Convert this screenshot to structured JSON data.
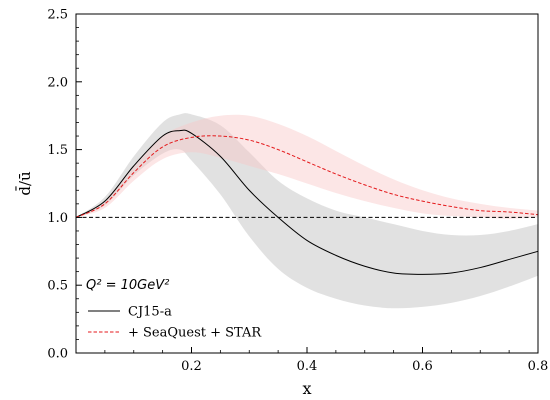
{
  "chart_data": {
    "type": "line",
    "xlabel": "x",
    "ylabel": "d̄/ū",
    "xlim": [
      0.0,
      0.8
    ],
    "ylim": [
      0.0,
      2.5
    ],
    "x_ticks": [
      0.2,
      0.4,
      0.6,
      0.8
    ],
    "x_tick_labels": [
      "0.2",
      "0.4",
      "0.6",
      "0.8"
    ],
    "y_ticks": [
      0.0,
      0.5,
      1.0,
      1.5,
      2.0,
      2.5
    ],
    "y_tick_labels": [
      "0.0",
      "0.5",
      "1.0",
      "1.5",
      "2.0",
      "2.5"
    ],
    "annotation": "Q² = 10GeV²",
    "legend_position": "bottom-left",
    "reference_line": {
      "y": 1.0,
      "style": "dashed",
      "color": "#000000"
    },
    "series": [
      {
        "name": "CJ15-a",
        "color": "#000000",
        "style": "solid",
        "band_color": "#bdbdbd",
        "x": [
          0.0,
          0.05,
          0.1,
          0.15,
          0.18,
          0.2,
          0.25,
          0.3,
          0.35,
          0.4,
          0.45,
          0.5,
          0.55,
          0.6,
          0.65,
          0.7,
          0.75,
          0.8
        ],
        "y": [
          1.0,
          1.12,
          1.38,
          1.6,
          1.64,
          1.62,
          1.45,
          1.2,
          1.0,
          0.83,
          0.72,
          0.64,
          0.59,
          0.58,
          0.59,
          0.63,
          0.69,
          0.75
        ],
        "lower": [
          1.0,
          1.09,
          1.31,
          1.47,
          1.5,
          1.42,
          1.17,
          0.86,
          0.62,
          0.48,
          0.4,
          0.35,
          0.33,
          0.34,
          0.37,
          0.42,
          0.49,
          0.57
        ],
        "upper": [
          1.0,
          1.15,
          1.45,
          1.7,
          1.76,
          1.76,
          1.68,
          1.48,
          1.27,
          1.14,
          1.05,
          1.0,
          0.95,
          0.9,
          0.87,
          0.87,
          0.9,
          0.95
        ]
      },
      {
        "name": "+ SeaQuest + STAR",
        "color": "#e41a1c",
        "style": "dashed",
        "band_color": "#f8c8c8",
        "x": [
          0.0,
          0.05,
          0.1,
          0.15,
          0.2,
          0.25,
          0.3,
          0.35,
          0.4,
          0.45,
          0.5,
          0.55,
          0.6,
          0.65,
          0.7,
          0.75,
          0.8
        ],
        "y": [
          1.0,
          1.1,
          1.33,
          1.52,
          1.59,
          1.6,
          1.57,
          1.5,
          1.41,
          1.32,
          1.24,
          1.17,
          1.12,
          1.08,
          1.05,
          1.04,
          1.02
        ],
        "lower": [
          1.0,
          1.07,
          1.27,
          1.43,
          1.48,
          1.44,
          1.38,
          1.32,
          1.25,
          1.18,
          1.12,
          1.07,
          1.03,
          1.01,
          1.0,
          0.99,
          1.0
        ],
        "upper": [
          1.0,
          1.12,
          1.38,
          1.6,
          1.7,
          1.75,
          1.75,
          1.69,
          1.6,
          1.49,
          1.38,
          1.28,
          1.2,
          1.14,
          1.1,
          1.07,
          1.05
        ]
      }
    ]
  }
}
